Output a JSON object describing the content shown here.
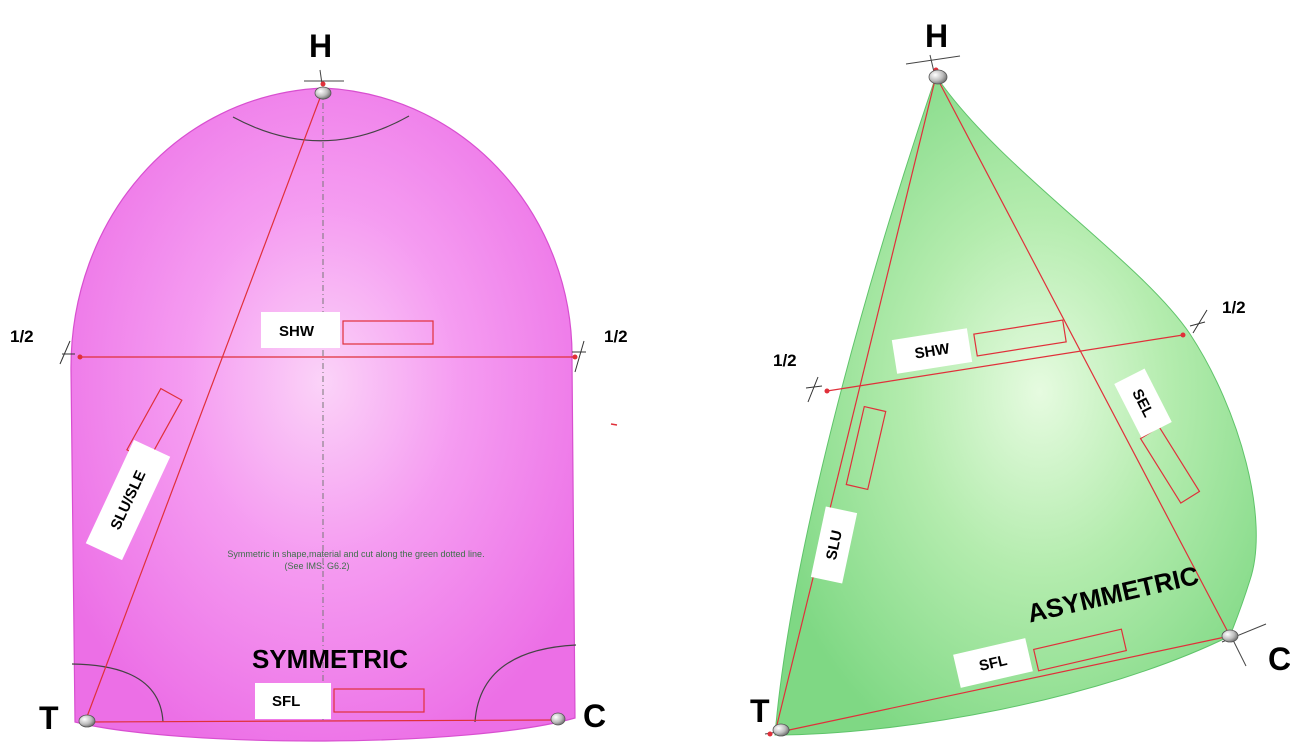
{
  "symmetric": {
    "head_label": "H",
    "tack_label": "T",
    "clew_label": "C",
    "half_left": "1/2",
    "half_right": "1/2",
    "shw_label": "SHW",
    "slu_sle_label": "SLU/SLE",
    "sfl_label": "SFL",
    "type_label": "SYMMETRIC",
    "note_line1": "Symmetric in shape,material and cut along the green dotted line.",
    "note_line2": "(See IMS: G6.2)",
    "fill_color": "#f27cf0"
  },
  "asymmetric": {
    "head_label": "H",
    "tack_label": "T",
    "clew_label": "C",
    "half_left": "1/2",
    "half_right": "1/2",
    "shw_label": "SHW",
    "slu_label": "SLU",
    "sel_label": "SEL",
    "sfl_label": "SFL",
    "type_label": "ASYMMETRIC",
    "fill_color": "#8fe08f"
  },
  "accent_red": "#e0303a"
}
